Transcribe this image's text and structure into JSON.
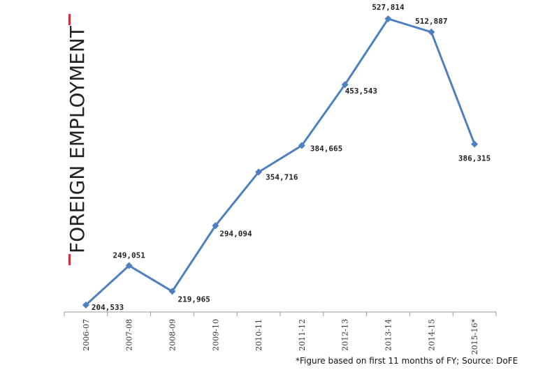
{
  "chart_data": {
    "type": "line",
    "title": "FOREIGN EMPLOYMENT",
    "footnote": "*Figure based on first 11 months of FY; Source: DoFE",
    "categories": [
      "2006-07",
      "2007-08",
      "2008-09",
      "2009-10",
      "2010-11",
      "2011-12",
      "2012-13",
      "2013-14",
      "2014-15",
      "2015-16*"
    ],
    "series": [
      {
        "color": "#4f7fc0",
        "values": [
          204533,
          249051,
          219965,
          294094,
          354716,
          384665,
          453543,
          527814,
          512887,
          386315
        ],
        "value_labels": [
          "204,533",
          "249,051",
          "219,965",
          "294,094",
          "354,716",
          "384,665",
          "453,543",
          "527,814",
          "512,887",
          "386,315"
        ]
      }
    ]
  }
}
